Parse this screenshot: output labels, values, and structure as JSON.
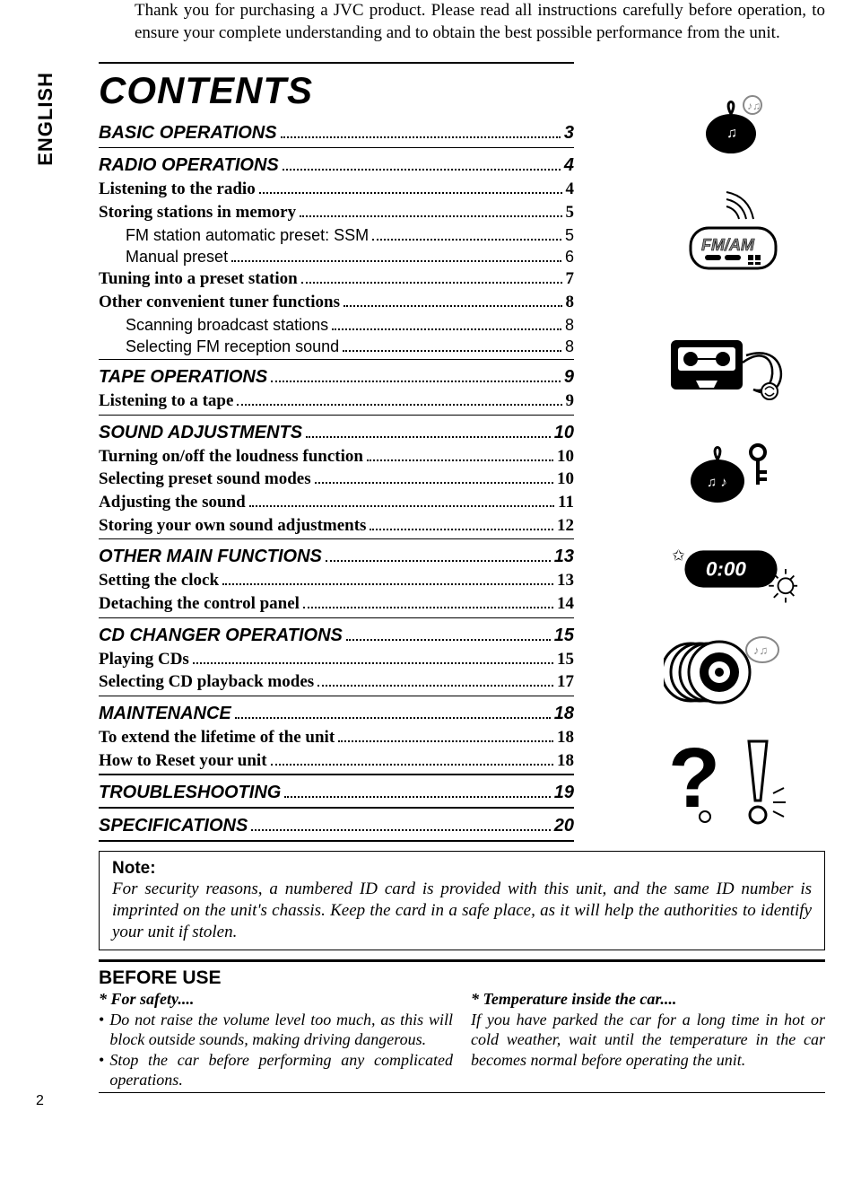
{
  "intro": "Thank you for purchasing a JVC product. Please read all instructions carefully before operation, to ensure your complete understanding and to obtain the best possible performance from the unit.",
  "language_tab": "ENGLISH",
  "contents_title": "CONTENTS",
  "page_number": "2",
  "colors": {
    "text": "#000000",
    "background": "#ffffff"
  },
  "toc": [
    {
      "heading": {
        "label": "BASIC OPERATIONS",
        "page": "3"
      },
      "items": [],
      "major_sep": false
    },
    {
      "heading": {
        "label": "RADIO OPERATIONS",
        "page": "4"
      },
      "items": [
        {
          "level": "h2",
          "label": "Listening to the radio",
          "page": "4"
        },
        {
          "level": "h2",
          "label": "Storing stations in memory",
          "page": "5"
        },
        {
          "level": "h3",
          "label": "FM station automatic preset: SSM",
          "page": "5"
        },
        {
          "level": "h3",
          "label": "Manual preset",
          "page": "6"
        },
        {
          "level": "h2",
          "label": "Tuning into a preset station",
          "page": "7"
        },
        {
          "level": "h2",
          "label": "Other convenient tuner functions",
          "page": "8"
        },
        {
          "level": "h3",
          "label": "Scanning broadcast stations",
          "page": "8"
        },
        {
          "level": "h3",
          "label": "Selecting FM reception sound",
          "page": "8"
        }
      ],
      "major_sep": false
    },
    {
      "heading": {
        "label": "TAPE OPERATIONS",
        "page": "9"
      },
      "items": [
        {
          "level": "h2",
          "label": "Listening to a tape",
          "page": "9"
        }
      ],
      "major_sep": false
    },
    {
      "heading": {
        "label": "SOUND ADJUSTMENTS",
        "page": "10"
      },
      "items": [
        {
          "level": "h2",
          "label": "Turning on/off the loudness function",
          "page": "10"
        },
        {
          "level": "h2",
          "label": "Selecting preset sound modes",
          "page": "10"
        },
        {
          "level": "h2",
          "label": "Adjusting the sound",
          "page": "11"
        },
        {
          "level": "h2",
          "label": "Storing your own sound adjustments",
          "page": "12"
        }
      ],
      "major_sep": false
    },
    {
      "heading": {
        "label": "OTHER MAIN FUNCTIONS",
        "page": "13"
      },
      "items": [
        {
          "level": "h2",
          "label": "Setting the clock",
          "page": "13"
        },
        {
          "level": "h2",
          "label": "Detaching the control panel",
          "page": "14"
        }
      ],
      "major_sep": false
    },
    {
      "heading": {
        "label": "CD CHANGER OPERATIONS",
        "page": "15"
      },
      "items": [
        {
          "level": "h2",
          "label": "Playing CDs",
          "page": "15"
        },
        {
          "level": "h2",
          "label": "Selecting CD playback modes",
          "page": "17"
        }
      ],
      "major_sep": false
    },
    {
      "heading": {
        "label": "MAINTENANCE",
        "page": "18"
      },
      "items": [
        {
          "level": "h2",
          "label": "To extend the lifetime of the unit",
          "page": "18"
        },
        {
          "level": "h2",
          "label": "How to Reset your unit",
          "page": "18"
        }
      ],
      "major_sep": true
    },
    {
      "heading": {
        "label": "TROUBLESHOOTING",
        "page": "19"
      },
      "items": [],
      "major_sep": true
    },
    {
      "heading": {
        "label": "SPECIFICATIONS",
        "page": "20"
      },
      "items": [],
      "major_sep": true
    }
  ],
  "note": {
    "title": "Note:",
    "body": "For security reasons, a numbered ID card is provided with this unit, and the same ID number is imprinted on the unit's chassis.  Keep the card in a safe place, as it will help the authorities to identify your unit if stolen."
  },
  "before_use": {
    "title": "BEFORE USE",
    "left": {
      "star": "* For safety....",
      "bullets": [
        "Do not raise the volume level too much, as this will block outside sounds, making driving dangerous.",
        "Stop the car before performing any complicated operations."
      ]
    },
    "right": {
      "star": "* Temperature inside the car....",
      "body": "If you have parked the car for a long time in hot or cold weather, wait until the temperature in the car becomes normal before operating the unit."
    }
  },
  "icons": {
    "fm_am_label": "FM/AM",
    "clock_label": "0:00"
  }
}
